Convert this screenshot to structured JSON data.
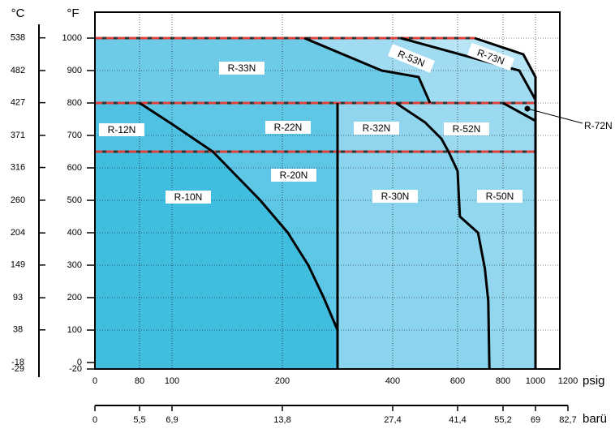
{
  "chart_data": {
    "type": "region",
    "y_label": "°F",
    "y2_label": "°C",
    "x_label": "psig",
    "x2_label": "barü",
    "xlim": [
      0,
      1150
    ],
    "ylim": [
      -20,
      1080
    ],
    "y2lim": [
      -29,
      582
    ],
    "xticks": [
      0,
      80,
      100,
      200,
      400,
      600,
      800,
      1000,
      1200
    ],
    "x2ticks": [
      0,
      {
        "value": 5.5,
        "label": "5,5"
      },
      {
        "value": 6.9,
        "label": "6,9"
      },
      {
        "value": 13.8,
        "label": "13,8"
      },
      {
        "value": 27.4,
        "label": "27,4"
      },
      {
        "value": 41.4,
        "label": "41,4"
      },
      {
        "value": 55.2,
        "label": "55,2"
      },
      69,
      {
        "value": 82.7,
        "label": "82,7"
      }
    ],
    "yticks": [
      -20,
      0,
      100,
      200,
      300,
      400,
      500,
      600,
      700,
      800,
      900,
      1000
    ],
    "y2ticks": [
      -29,
      -18,
      38,
      93,
      149,
      204,
      260,
      316,
      371,
      427,
      482,
      538
    ],
    "grid": true,
    "regions": [
      {
        "name": "R-10N",
        "color": "#41bde0",
        "points": [
          [
            0,
            -20
          ],
          [
            0,
            650
          ],
          [
            137,
            650
          ],
          [
            180,
            500
          ],
          [
            210,
            400
          ],
          [
            247,
            300
          ],
          [
            275,
            200
          ],
          [
            300,
            100
          ],
          [
            300,
            -20
          ]
        ]
      },
      {
        "name": "R-20N",
        "color": "#5fc7e6",
        "points": [
          [
            137,
            650
          ],
          [
            300,
            650
          ],
          [
            300,
            100
          ],
          [
            275,
            200
          ],
          [
            247,
            300
          ],
          [
            210,
            400
          ],
          [
            180,
            500
          ]
        ]
      },
      {
        "name": "R-12N",
        "color": "#4fc2e4",
        "points": [
          [
            0,
            650
          ],
          [
            0,
            800
          ],
          [
            80,
            800
          ],
          [
            100,
            735
          ],
          [
            137,
            650
          ]
        ]
      },
      {
        "name": "R-22N",
        "color": "#5fc7e6",
        "points": [
          [
            80,
            800
          ],
          [
            300,
            800
          ],
          [
            300,
            650
          ],
          [
            137,
            650
          ],
          [
            100,
            735
          ]
        ]
      },
      {
        "name": "R-30N",
        "color": "#8ad4ed",
        "points": [
          [
            300,
            -20
          ],
          [
            300,
            650
          ],
          [
            572,
            650
          ],
          [
            600,
            590
          ],
          [
            607,
            490
          ],
          [
            610,
            450
          ],
          [
            690,
            400
          ],
          [
            720,
            290
          ],
          [
            735,
            190
          ],
          [
            740,
            -20
          ]
        ]
      },
      {
        "name": "R-50N",
        "color": "#93d7ef",
        "points": [
          [
            740,
            -20
          ],
          [
            735,
            190
          ],
          [
            720,
            290
          ],
          [
            690,
            400
          ],
          [
            610,
            450
          ],
          [
            607,
            490
          ],
          [
            600,
            590
          ],
          [
            572,
            650
          ],
          [
            1000,
            650
          ],
          [
            1000,
            -20
          ]
        ]
      },
      {
        "name": "R-32N",
        "color": "#8fd5ee",
        "points": [
          [
            300,
            650
          ],
          [
            300,
            800
          ],
          [
            410,
            800
          ],
          [
            500,
            740
          ],
          [
            550,
            690
          ],
          [
            572,
            650
          ]
        ]
      },
      {
        "name": "R-52N",
        "color": "#9ad9f0",
        "points": [
          [
            410,
            800
          ],
          [
            800,
            800
          ],
          [
            1000,
            745
          ],
          [
            1000,
            650
          ],
          [
            572,
            650
          ],
          [
            550,
            690
          ],
          [
            500,
            740
          ]
        ]
      },
      {
        "name": "R-72N",
        "color": "#a6def2",
        "points": [
          [
            800,
            800
          ],
          [
            1000,
            800
          ],
          [
            1000,
            745
          ]
        ]
      },
      {
        "name": "R-33N",
        "color": "#6ecbe8",
        "points": [
          [
            0,
            800
          ],
          [
            0,
            1000
          ],
          [
            240,
            1000
          ],
          [
            380,
            900
          ],
          [
            480,
            880
          ],
          [
            515,
            800
          ]
        ]
      },
      {
        "name": "R-53N",
        "color": "#a0dbf1",
        "points": [
          [
            515,
            800
          ],
          [
            480,
            880
          ],
          [
            380,
            900
          ],
          [
            240,
            1000
          ],
          [
            425,
            1000
          ],
          [
            900,
            900
          ],
          [
            1000,
            810
          ],
          [
            1000,
            800
          ]
        ]
      },
      {
        "name": "R-73N",
        "color": "#b8e5f5",
        "points": [
          [
            425,
            1000
          ],
          [
            675,
            1000
          ],
          [
            925,
            950
          ],
          [
            1000,
            880
          ],
          [
            1000,
            810
          ],
          [
            900,
            900
          ]
        ]
      }
    ],
    "boundaries": [
      [
        [
          80,
          800
        ],
        [
          100,
          735
        ],
        [
          137,
          650
        ],
        [
          180,
          500
        ],
        [
          210,
          400
        ],
        [
          247,
          300
        ],
        [
          275,
          200
        ],
        [
          300,
          100
        ],
        [
          300,
          -20
        ]
      ],
      [
        [
          300,
          800
        ],
        [
          300,
          -20
        ]
      ],
      [
        [
          410,
          800
        ],
        [
          500,
          740
        ],
        [
          550,
          690
        ],
        [
          572,
          650
        ],
        [
          600,
          590
        ],
        [
          607,
          490
        ],
        [
          610,
          450
        ],
        [
          690,
          400
        ],
        [
          720,
          290
        ],
        [
          735,
          190
        ],
        [
          740,
          -20
        ]
      ],
      [
        [
          240,
          1000
        ],
        [
          380,
          900
        ],
        [
          480,
          880
        ],
        [
          515,
          800
        ]
      ],
      [
        [
          425,
          1000
        ],
        [
          900,
          900
        ],
        [
          1000,
          810
        ]
      ],
      [
        [
          675,
          1000
        ],
        [
          925,
          950
        ],
        [
          1000,
          880
        ],
        [
          1000,
          -20
        ]
      ],
      [
        [
          800,
          800
        ],
        [
          1000,
          745
        ]
      ]
    ],
    "limit_lines": [
      [
        [
          0,
          1000
        ],
        [
          675,
          1000
        ]
      ],
      [
        [
          0,
          800
        ],
        [
          1000,
          800
        ]
      ],
      [
        [
          0,
          650
        ],
        [
          1000,
          650
        ]
      ]
    ]
  }
}
